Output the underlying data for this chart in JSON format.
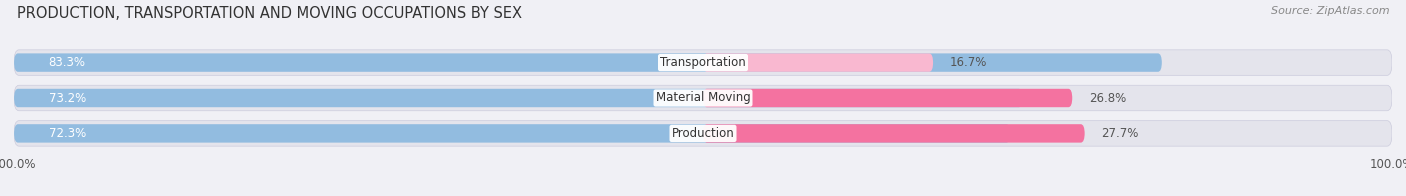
{
  "title": "PRODUCTION, TRANSPORTATION AND MOVING OCCUPATIONS BY SEX",
  "source": "Source: ZipAtlas.com",
  "categories": [
    "Transportation",
    "Material Moving",
    "Production"
  ],
  "male_values": [
    83.3,
    73.2,
    72.3
  ],
  "female_values": [
    16.7,
    26.8,
    27.7
  ],
  "male_color": "#92bce0",
  "female_color": "#f472a0",
  "female_color_top": "#f9b8d0",
  "bar_bg_color": "#e4e4ec",
  "male_label_color": "white",
  "female_label_color": "#555555",
  "axis_label": "100.0%",
  "title_fontsize": 10.5,
  "source_fontsize": 8,
  "bar_label_fontsize": 8.5,
  "category_fontsize": 8.5,
  "legend_fontsize": 8.5,
  "background_color": "#f0f0f5"
}
